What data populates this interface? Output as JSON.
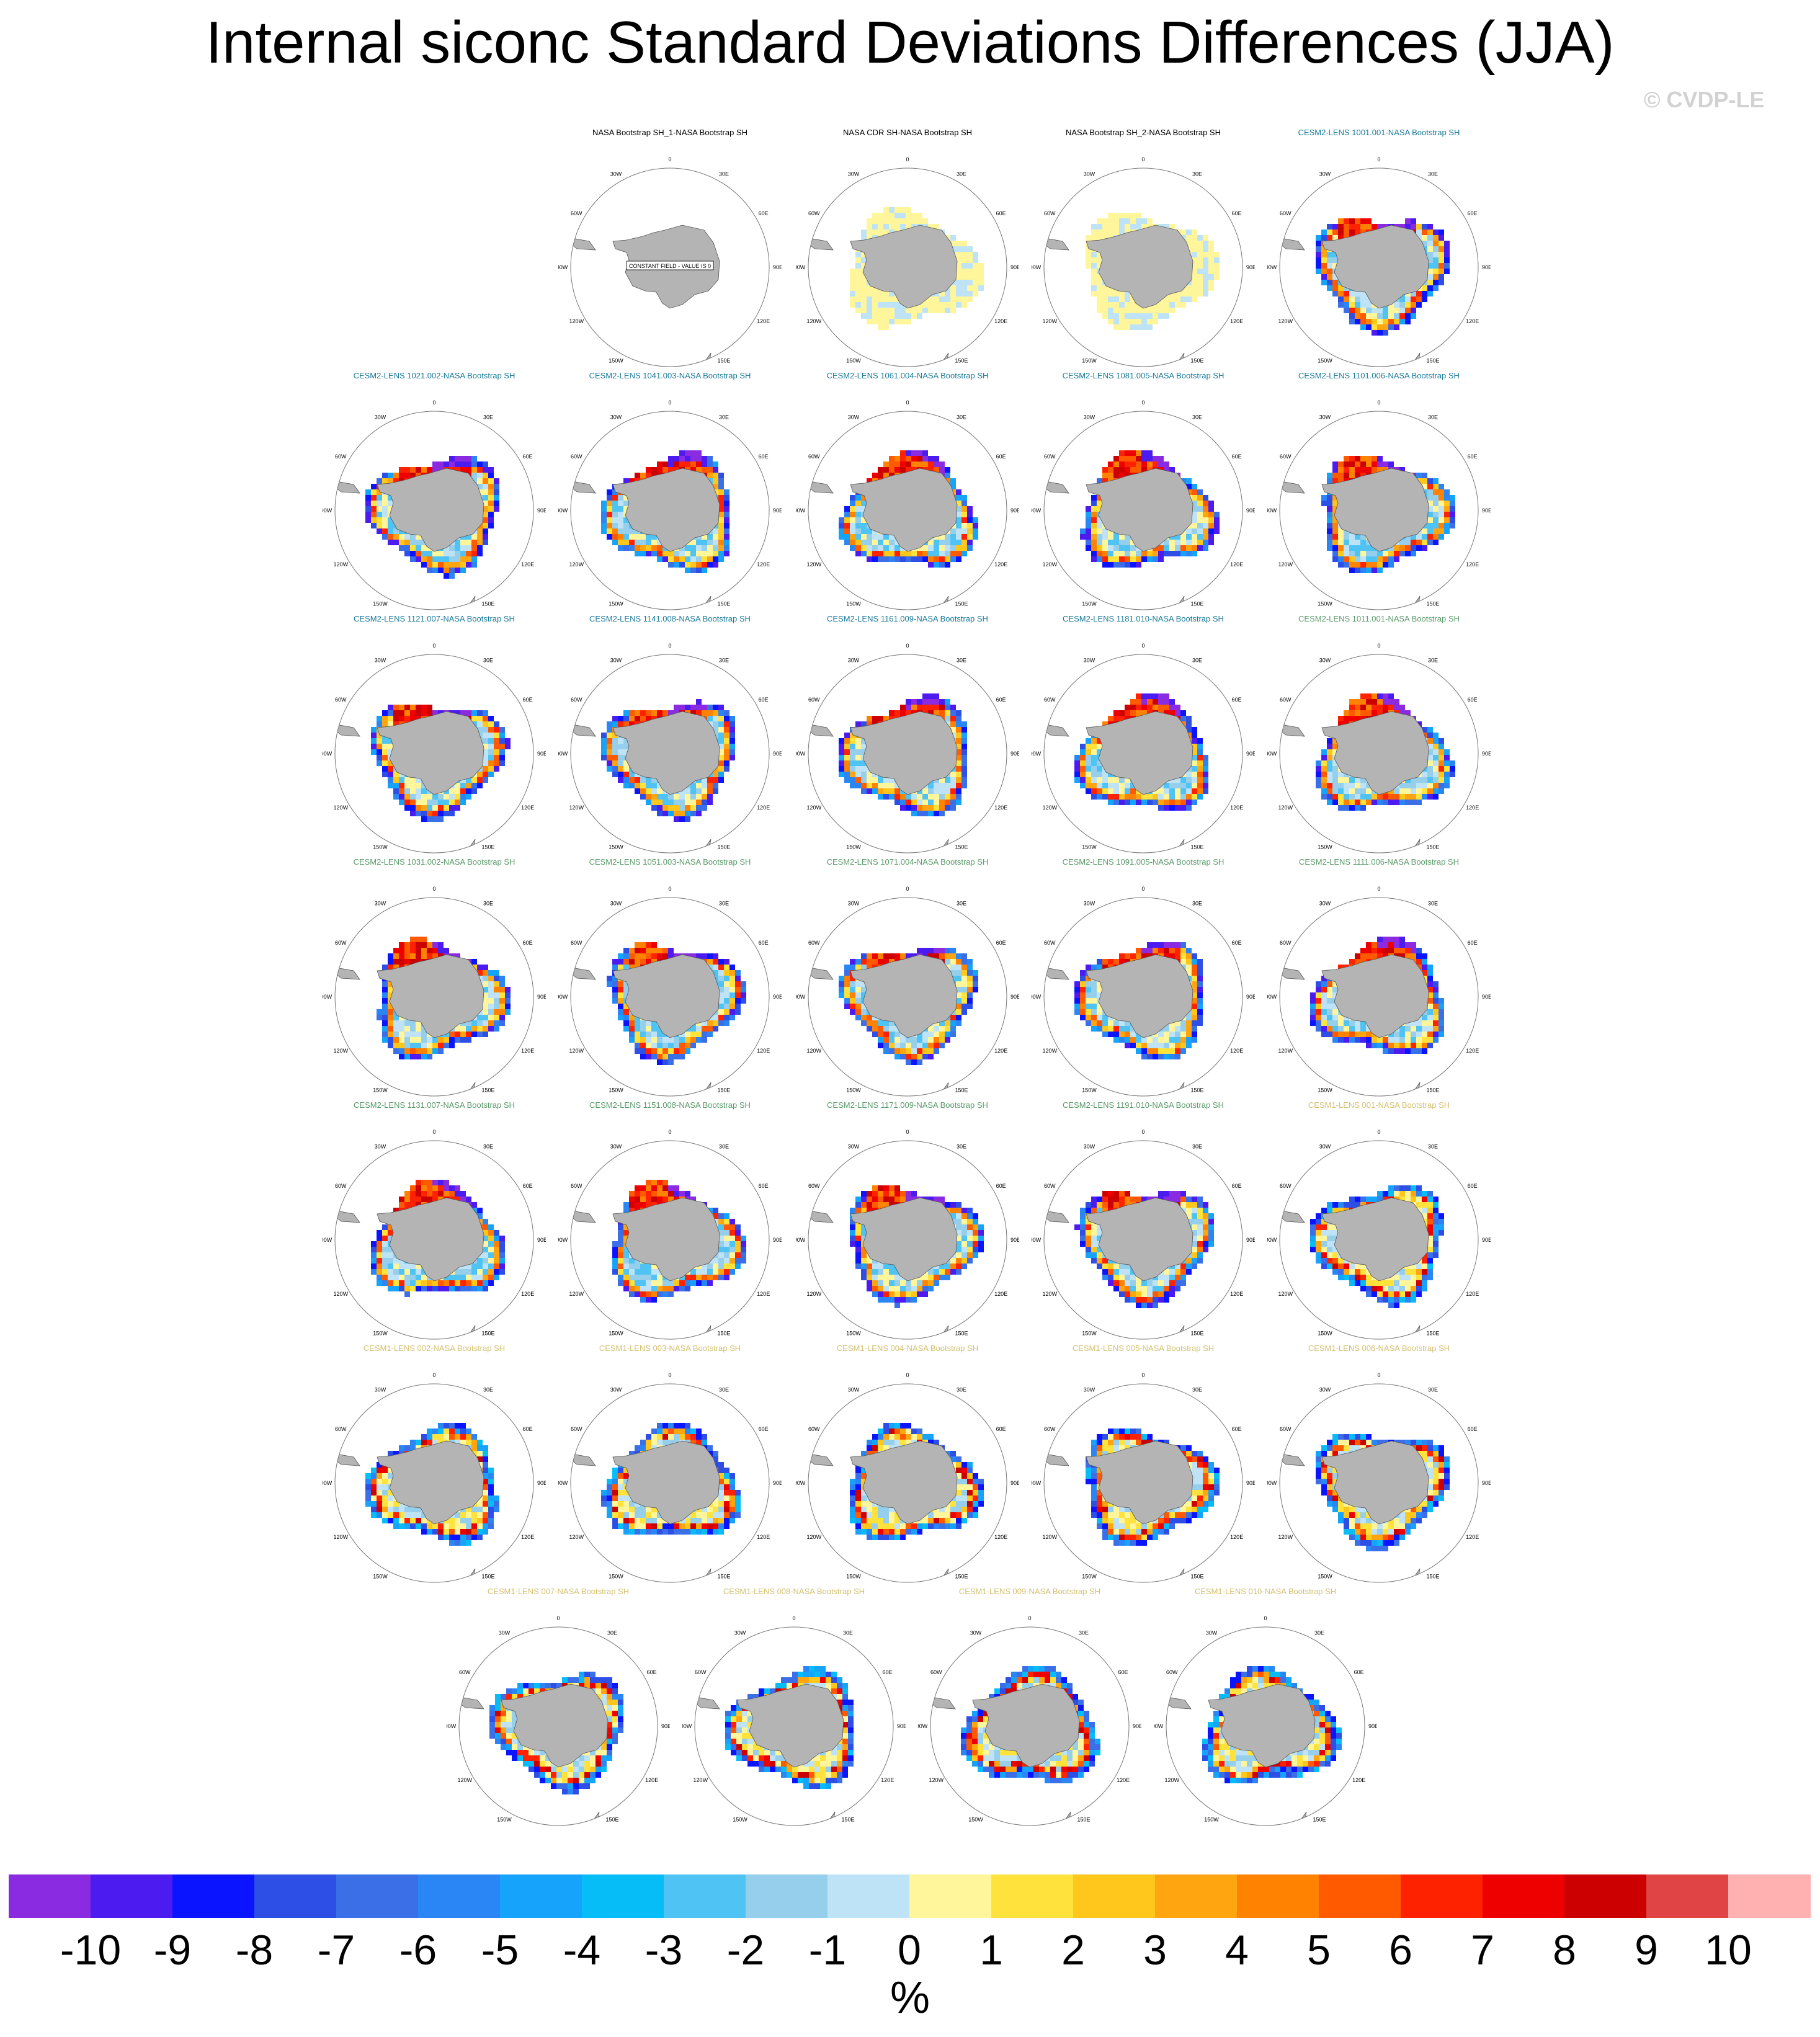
{
  "title": "Internal siconc Standard Deviations Differences (JJA)",
  "copyright": "© CVDP-LE",
  "map_labels": {
    "top": "0",
    "top_right": "30E",
    "right_upper": "60E",
    "right": "90E",
    "right_lower": "120E",
    "bottom_right": "150E",
    "bottom": "180",
    "bottom_left": "150W",
    "left_lower": "120W",
    "left": "90W",
    "left_upper": "60W",
    "top_left": "30W"
  },
  "constant_field_note": "CONSTANT FIELD - VALUE IS 0",
  "title_colors": {
    "obs": "#000000",
    "cesm2_a": "#1a7a9a",
    "cesm2_b": "#5a9a6a",
    "cesm1": "#d4c070"
  },
  "panels": [
    {
      "title": "NASA Bootstrap SH_1-NASA Bootstrap SH",
      "group": "obs",
      "field": "constant"
    },
    {
      "title": "NASA CDR SH-NASA Bootstrap SH",
      "group": "obs",
      "field": "pale"
    },
    {
      "title": "NASA Bootstrap SH_2-NASA Bootstrap SH",
      "group": "obs",
      "field": "pale"
    },
    {
      "title": "CESM2-LENS 1001.001-NASA Bootstrap SH",
      "group": "cesm2_a",
      "field": "cesm2"
    },
    {
      "title": "CESM2-LENS 1021.002-NASA Bootstrap SH",
      "group": "cesm2_a",
      "field": "cesm2"
    },
    {
      "title": "CESM2-LENS 1041.003-NASA Bootstrap SH",
      "group": "cesm2_a",
      "field": "cesm2"
    },
    {
      "title": "CESM2-LENS 1061.004-NASA Bootstrap SH",
      "group": "cesm2_a",
      "field": "cesm2"
    },
    {
      "title": "CESM2-LENS 1081.005-NASA Bootstrap SH",
      "group": "cesm2_a",
      "field": "cesm2"
    },
    {
      "title": "CESM2-LENS 1101.006-NASA Bootstrap SH",
      "group": "cesm2_a",
      "field": "cesm2"
    },
    {
      "title": "CESM2-LENS 1121.007-NASA Bootstrap SH",
      "group": "cesm2_a",
      "field": "cesm2"
    },
    {
      "title": "CESM2-LENS 1141.008-NASA Bootstrap SH",
      "group": "cesm2_a",
      "field": "cesm2"
    },
    {
      "title": "CESM2-LENS 1161.009-NASA Bootstrap SH",
      "group": "cesm2_a",
      "field": "cesm2"
    },
    {
      "title": "CESM2-LENS 1181.010-NASA Bootstrap SH",
      "group": "cesm2_a",
      "field": "cesm2"
    },
    {
      "title": "CESM2-LENS 1011.001-NASA Bootstrap SH",
      "group": "cesm2_b",
      "field": "cesm2"
    },
    {
      "title": "CESM2-LENS 1031.002-NASA Bootstrap SH",
      "group": "cesm2_b",
      "field": "cesm2"
    },
    {
      "title": "CESM2-LENS 1051.003-NASA Bootstrap SH",
      "group": "cesm2_b",
      "field": "cesm2"
    },
    {
      "title": "CESM2-LENS 1071.004-NASA Bootstrap SH",
      "group": "cesm2_b",
      "field": "cesm2"
    },
    {
      "title": "CESM2-LENS 1091.005-NASA Bootstrap SH",
      "group": "cesm2_b",
      "field": "cesm2"
    },
    {
      "title": "CESM2-LENS 1111.006-NASA Bootstrap SH",
      "group": "cesm2_b",
      "field": "cesm2"
    },
    {
      "title": "CESM2-LENS 1131.007-NASA Bootstrap SH",
      "group": "cesm2_b",
      "field": "cesm2"
    },
    {
      "title": "CESM2-LENS 1151.008-NASA Bootstrap SH",
      "group": "cesm2_b",
      "field": "cesm2"
    },
    {
      "title": "CESM2-LENS 1171.009-NASA Bootstrap SH",
      "group": "cesm2_b",
      "field": "cesm2"
    },
    {
      "title": "CESM2-LENS 1191.010-NASA Bootstrap SH",
      "group": "cesm2_b",
      "field": "cesm2"
    },
    {
      "title": "CESM1-LENS 001-NASA Bootstrap SH",
      "group": "cesm1",
      "field": "cesm1"
    },
    {
      "title": "CESM1-LENS 002-NASA Bootstrap SH",
      "group": "cesm1",
      "field": "cesm1"
    },
    {
      "title": "CESM1-LENS 003-NASA Bootstrap SH",
      "group": "cesm1",
      "field": "cesm1"
    },
    {
      "title": "CESM1-LENS 004-NASA Bootstrap SH",
      "group": "cesm1",
      "field": "cesm1"
    },
    {
      "title": "CESM1-LENS 005-NASA Bootstrap SH",
      "group": "cesm1",
      "field": "cesm1"
    },
    {
      "title": "CESM1-LENS 006-NASA Bootstrap SH",
      "group": "cesm1",
      "field": "cesm1"
    },
    {
      "title": "CESM1-LENS 007-NASA Bootstrap SH",
      "group": "cesm1",
      "field": "cesm1"
    },
    {
      "title": "CESM1-LENS 008-NASA Bootstrap SH",
      "group": "cesm1",
      "field": "cesm1"
    },
    {
      "title": "CESM1-LENS 009-NASA Bootstrap SH",
      "group": "cesm1",
      "field": "cesm1"
    },
    {
      "title": "CESM1-LENS 010-NASA Bootstrap SH",
      "group": "cesm1",
      "field": "cesm1"
    }
  ],
  "colorbar": {
    "colors": [
      "#8a2be2",
      "#4b1bf0",
      "#0a14ff",
      "#2e4fe6",
      "#3a6fe8",
      "#2a86f5",
      "#15a3fb",
      "#06bdf7",
      "#4ec3f4",
      "#96cfec",
      "#bfe3f6",
      "#fff59a",
      "#ffe23c",
      "#ffc61c",
      "#ffa510",
      "#ff8200",
      "#ff5a00",
      "#ff2200",
      "#ee0000",
      "#cc0000",
      "#e04444",
      "#ffb0b0"
    ],
    "ticks": [
      "-10",
      "-9",
      "-8",
      "-7",
      "-6",
      "-5",
      "-4",
      "-3",
      "-2",
      "-1",
      "0",
      "1",
      "2",
      "3",
      "4",
      "5",
      "6",
      "7",
      "8",
      "9",
      "10"
    ],
    "units": "%"
  }
}
